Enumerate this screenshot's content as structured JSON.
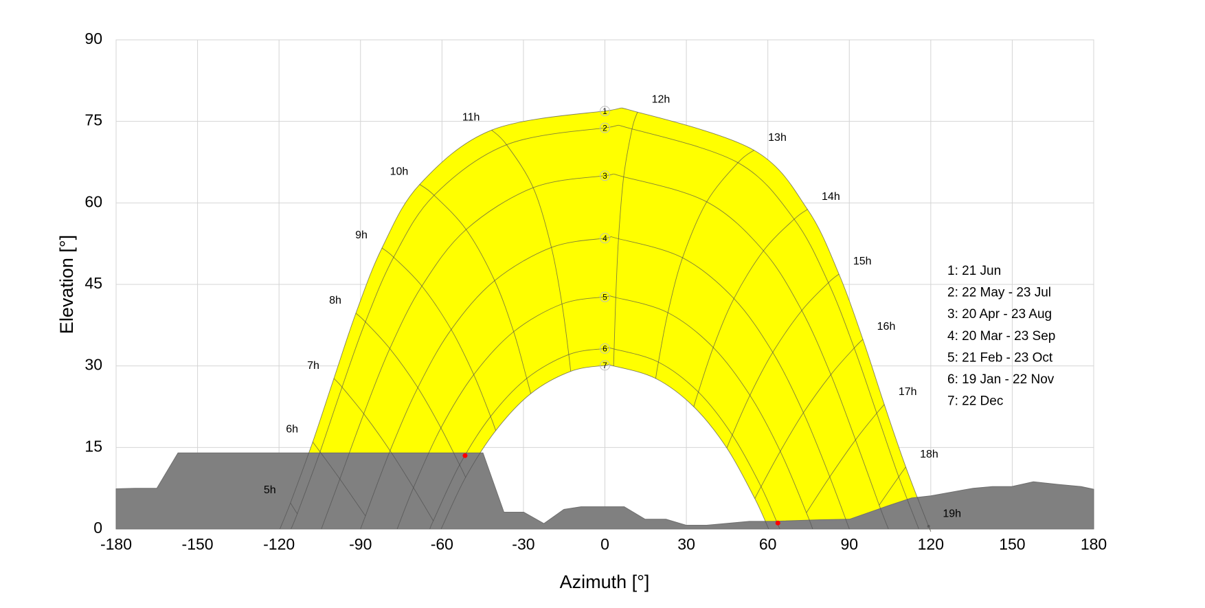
{
  "chart_data": {
    "type": "sunpath",
    "x_label": "Azimuth [°]",
    "y_label": "Elevation [°]",
    "xlim": [
      -180,
      180
    ],
    "xticks": [
      -180,
      -150,
      -120,
      -90,
      -60,
      -30,
      0,
      30,
      60,
      90,
      120,
      150,
      180
    ],
    "ylim": [
      0,
      90
    ],
    "yticks": [
      0,
      15,
      30,
      45,
      60,
      75,
      90
    ],
    "grid": true,
    "band_color": "#ffff00",
    "line_color": "#4d4d4d",
    "series": [
      {
        "name": "1",
        "x": [
          -119.7,
          -115.8,
          -107.6,
          -99.8,
          -91.7,
          -82.1,
          -68.2,
          -41.7,
          0,
          12.0,
          54.9,
          74.6,
          86.2,
          95.0,
          102.9,
          110.8,
          119.2,
          119.7
        ],
        "values": [
          0,
          4.8,
          16.0,
          27.7,
          39.7,
          51.7,
          63.4,
          73.4,
          76.9,
          76.7,
          69.7,
          58.8,
          46.9,
          34.9,
          22.9,
          11.4,
          0.5,
          0
        ]
      },
      {
        "name": "2",
        "x": [
          -115.6,
          -113.3,
          -104.9,
          -96.8,
          -88.2,
          -77.8,
          -62.9,
          -36.2,
          0,
          10.0,
          49.0,
          69.7,
          82.3,
          91.8,
          100.1,
          108.2,
          115.6
        ],
        "values": [
          0,
          2.8,
          14.2,
          26.1,
          38.1,
          50.0,
          61.4,
          70.7,
          73.8,
          73.6,
          67.4,
          57.0,
          45.3,
          33.3,
          21.3,
          9.6,
          0
        ]
      },
      {
        "name": "3",
        "x": [
          -104.4,
          -97.6,
          -88.8,
          -79.2,
          -67.4,
          -51.1,
          -26.4,
          0,
          6.9,
          37.5,
          58.4,
          72.5,
          83.2,
          92.3,
          101.0,
          104.4
        ],
        "values": [
          0,
          9.2,
          21.2,
          33.2,
          44.7,
          55.1,
          62.8,
          65.0,
          64.8,
          60.2,
          51.2,
          40.2,
          28.4,
          16.4,
          4.4,
          0
        ]
      },
      {
        "name": "4",
        "x": [
          -90,
          -88.2,
          -79.1,
          -68.9,
          -56.6,
          -40.6,
          -19.7,
          0,
          5.0,
          28.6,
          47.5,
          61.8,
          73.1,
          82.8,
          90
        ],
        "values": [
          0,
          2.4,
          14.4,
          26.0,
          36.7,
          45.7,
          51.8,
          53.5,
          53.4,
          49.9,
          42.4,
          32.5,
          21.4,
          9.6,
          0
        ]
      },
      {
        "name": "5",
        "x": [
          -76.5,
          -70.5,
          -60.4,
          -48.3,
          -33.6,
          -15.8,
          0,
          4.0,
          23.2,
          39.9,
          53.4,
          64.6,
          74.2,
          76.5
        ],
        "values": [
          0,
          7.6,
          18.6,
          28.4,
          36.3,
          41.4,
          42.7,
          42.6,
          39.8,
          33.4,
          24.6,
          14.3,
          3.0,
          0
        ]
      },
      {
        "name": "6",
        "x": [
          -64.4,
          -63.2,
          -53.5,
          -42.1,
          -28.8,
          -13.3,
          0,
          3.4,
          19.7,
          34.4,
          46.9,
          57.5,
          64.4
        ],
        "values": [
          0,
          1.5,
          11.8,
          20.7,
          27.7,
          32.1,
          33.2,
          33.1,
          30.7,
          25.2,
          17.3,
          7.8,
          0
        ]
      },
      {
        "name": "7",
        "x": [
          -60.3,
          -51.3,
          -40.2,
          -27.3,
          -12.6,
          0,
          3.2,
          18.7,
          32.7,
          44.9,
          55.2,
          60.3
        ],
        "values": [
          0,
          9.5,
          18.1,
          24.9,
          29.0,
          30.1,
          30.0,
          27.7,
          22.5,
          14.9,
          5.6,
          0
        ]
      }
    ],
    "hour_lines": [
      {
        "name": "5h",
        "x": [
          -115.8,
          -113.3
        ],
        "values": [
          4.8,
          2.8
        ]
      },
      {
        "name": "6h",
        "x": [
          -107.6,
          -104.9,
          -97.6,
          -88.2
        ],
        "values": [
          16.0,
          14.2,
          9.2,
          2.4
        ]
      },
      {
        "name": "7h",
        "x": [
          -99.8,
          -96.8,
          -88.8,
          -79.1,
          -70.5,
          -63.2
        ],
        "values": [
          27.7,
          26.1,
          21.2,
          14.4,
          7.6,
          1.5
        ]
      },
      {
        "name": "8h",
        "x": [
          -91.7,
          -88.2,
          -79.2,
          -68.9,
          -60.4,
          -53.5,
          -51.3
        ],
        "values": [
          39.7,
          38.1,
          33.2,
          26.0,
          18.6,
          11.8,
          9.5
        ]
      },
      {
        "name": "9h",
        "x": [
          -82.1,
          -77.8,
          -67.4,
          -56.6,
          -48.3,
          -42.1,
          -40.2
        ],
        "values": [
          51.7,
          50.0,
          44.7,
          36.7,
          28.4,
          20.7,
          18.1
        ]
      },
      {
        "name": "10h",
        "x": [
          -68.2,
          -62.9,
          -51.1,
          -40.6,
          -33.6,
          -28.8,
          -27.3
        ],
        "values": [
          63.4,
          61.4,
          55.1,
          45.7,
          36.3,
          27.7,
          24.9
        ]
      },
      {
        "name": "11h",
        "x": [
          -41.7,
          -36.2,
          -26.4,
          -19.7,
          -15.8,
          -13.3,
          -12.6
        ],
        "values": [
          73.4,
          70.7,
          62.8,
          51.8,
          41.4,
          32.1,
          29.0
        ]
      },
      {
        "name": "12h",
        "x": [
          12.0,
          10.0,
          6.9,
          5.0,
          4.0,
          3.4,
          3.2
        ],
        "values": [
          76.7,
          73.6,
          64.8,
          53.4,
          42.6,
          33.1,
          30.0
        ]
      },
      {
        "name": "13h",
        "x": [
          54.9,
          49.0,
          37.5,
          28.6,
          23.2,
          19.7,
          18.7
        ],
        "values": [
          69.7,
          67.4,
          60.2,
          49.9,
          39.8,
          30.7,
          27.7
        ]
      },
      {
        "name": "14h",
        "x": [
          74.6,
          69.7,
          58.4,
          47.5,
          39.9,
          34.4,
          32.7
        ],
        "values": [
          58.8,
          57.0,
          51.2,
          42.4,
          33.4,
          25.2,
          22.5
        ]
      },
      {
        "name": "15h",
        "x": [
          86.2,
          82.3,
          72.5,
          61.8,
          53.4,
          46.9,
          44.9
        ],
        "values": [
          46.9,
          45.3,
          40.2,
          32.5,
          24.6,
          17.3,
          14.9
        ]
      },
      {
        "name": "16h",
        "x": [
          95.0,
          91.8,
          83.2,
          73.1,
          64.6,
          57.5,
          55.2
        ],
        "values": [
          34.9,
          33.3,
          28.4,
          21.4,
          14.3,
          7.8,
          5.6
        ]
      },
      {
        "name": "17h",
        "x": [
          102.9,
          100.1,
          92.3,
          82.8,
          74.2
        ],
        "values": [
          22.9,
          21.3,
          16.4,
          9.6,
          3.0
        ]
      },
      {
        "name": "18h",
        "x": [
          110.8,
          108.2,
          101.0
        ],
        "values": [
          11.4,
          9.6,
          4.4
        ]
      },
      {
        "name": "19h",
        "x": [
          119.2
        ],
        "values": [
          0.5
        ]
      }
    ],
    "horizon": {
      "color": "#808080",
      "x": [
        -180,
        -173,
        -165,
        -157.2,
        -108.9,
        -44.9,
        -37.2,
        -29.9,
        -22.5,
        -15.1,
        -8.8,
        7.1,
        14.8,
        22.5,
        29.9,
        37.5,
        53.2,
        61.7,
        78.8,
        90.1,
        104.4,
        112.9,
        120,
        135.6,
        142.7,
        149.8,
        157.8,
        166.9,
        175.4,
        180
      ],
      "values": [
        7.4,
        7.5,
        7.5,
        14.0,
        14.0,
        14.0,
        3.1,
        3.1,
        1.0,
        3.6,
        4.1,
        4.1,
        1.8,
        1.8,
        0.7,
        0.7,
        1.4,
        1.4,
        1.7,
        1.8,
        4.3,
        5.7,
        6.1,
        7.5,
        7.8,
        7.8,
        8.7,
        8.2,
        7.8,
        7.3
      ]
    },
    "markers": {
      "color": "#ff0000",
      "x": [
        -51.5,
        63.7
      ],
      "values": [
        13.5,
        1.1
      ]
    },
    "legend": [
      "1: 21 Jun",
      "2: 22 May - 23 Jul",
      "3: 20 Apr - 23 Aug",
      "4: 20 Mar - 23 Sep",
      "5: 21 Feb - 23 Oct",
      "6: 19 Jan - 22 Nov",
      "7: 22 Dec"
    ]
  }
}
